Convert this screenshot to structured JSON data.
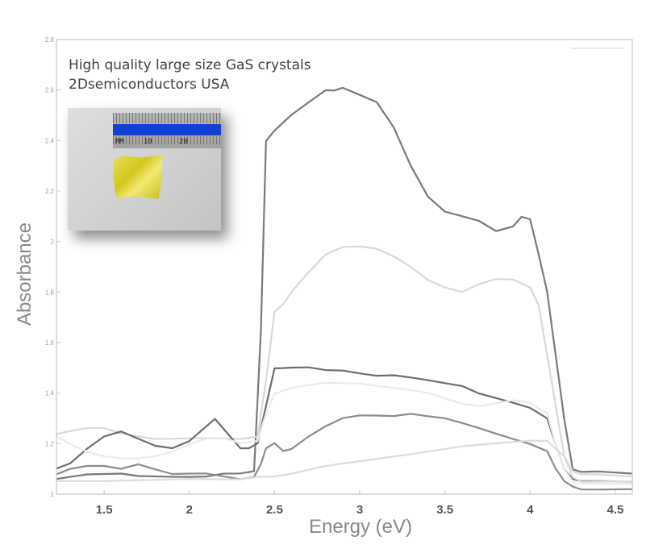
{
  "chart_data": {
    "type": "line",
    "title": "",
    "xlabel": "Energy (eV)",
    "ylabel": "Absorbance",
    "xlim": [
      1.22,
      4.6
    ],
    "ylim": [
      1.0,
      2.8
    ],
    "x_ticks": [
      "1.5",
      "2",
      "2.5",
      "3",
      "3.5",
      "4",
      "4.5"
    ],
    "y_ticks": [
      "1",
      "1.2",
      "1.4",
      "1.6",
      "1.8",
      "2",
      "2.2",
      "2.4",
      "2.6",
      "2.8"
    ],
    "grid": false,
    "series": [
      {
        "color": "#7a7a7a",
        "x": [
          1.22,
          1.3,
          1.4,
          1.5,
          1.6,
          1.7,
          1.8,
          1.9,
          2.0,
          2.1,
          2.2,
          2.3,
          2.38,
          2.42,
          2.45,
          2.5,
          2.55,
          2.6,
          2.7,
          2.8,
          2.85,
          2.9,
          3.0,
          3.1,
          3.2,
          3.3,
          3.4,
          3.5,
          3.6,
          3.7,
          3.8,
          3.9,
          3.95,
          4.0,
          4.05,
          4.1,
          4.15,
          4.2,
          4.25,
          4.3,
          4.4,
          4.6
        ],
        "y": [
          1.06,
          1.07,
          1.08,
          1.08,
          1.08,
          1.07,
          1.07,
          1.07,
          1.07,
          1.07,
          1.08,
          1.08,
          1.09,
          1.65,
          2.4,
          2.44,
          2.47,
          2.5,
          2.55,
          2.6,
          2.6,
          2.61,
          2.58,
          2.55,
          2.45,
          2.3,
          2.18,
          2.12,
          2.1,
          2.08,
          2.04,
          2.06,
          2.1,
          2.09,
          1.95,
          1.8,
          1.55,
          1.3,
          1.1,
          1.09,
          1.09,
          1.08
        ]
      },
      {
        "color": "#d9d9d9",
        "x": [
          1.22,
          1.3,
          1.4,
          1.5,
          1.6,
          1.7,
          1.8,
          1.9,
          2.0,
          2.1,
          2.2,
          2.3,
          2.4,
          2.45,
          2.5,
          2.55,
          2.6,
          2.7,
          2.8,
          2.9,
          3.0,
          3.1,
          3.2,
          3.3,
          3.4,
          3.5,
          3.6,
          3.7,
          3.8,
          3.9,
          4.0,
          4.05,
          4.1,
          4.15,
          4.2,
          4.25,
          4.3,
          4.4,
          4.6
        ],
        "y": [
          1.24,
          1.25,
          1.26,
          1.26,
          1.24,
          1.23,
          1.22,
          1.22,
          1.22,
          1.22,
          1.22,
          1.22,
          1.23,
          1.45,
          1.72,
          1.75,
          1.8,
          1.88,
          1.95,
          1.98,
          1.98,
          1.97,
          1.94,
          1.9,
          1.85,
          1.82,
          1.8,
          1.83,
          1.85,
          1.85,
          1.82,
          1.75,
          1.55,
          1.35,
          1.15,
          1.09,
          1.08,
          1.08,
          1.07
        ]
      },
      {
        "color": "#6e6e6e",
        "x": [
          1.22,
          1.3,
          1.4,
          1.5,
          1.6,
          1.7,
          1.8,
          1.9,
          2.0,
          2.1,
          2.15,
          2.2,
          2.3,
          2.35,
          2.4,
          2.45,
          2.5,
          2.55,
          2.6,
          2.7,
          2.8,
          2.9,
          3.0,
          3.1,
          3.2,
          3.3,
          3.4,
          3.5,
          3.6,
          3.7,
          3.8,
          3.9,
          4.0,
          4.1,
          4.15,
          4.2,
          4.25,
          4.3,
          4.4,
          4.6
        ],
        "y": [
          1.1,
          1.12,
          1.18,
          1.23,
          1.25,
          1.22,
          1.19,
          1.18,
          1.21,
          1.27,
          1.3,
          1.26,
          1.18,
          1.18,
          1.2,
          1.35,
          1.5,
          1.5,
          1.5,
          1.5,
          1.49,
          1.49,
          1.48,
          1.47,
          1.47,
          1.46,
          1.45,
          1.44,
          1.43,
          1.4,
          1.38,
          1.36,
          1.34,
          1.3,
          1.2,
          1.1,
          1.06,
          1.05,
          1.05,
          1.05
        ]
      },
      {
        "color": "#ebebeb",
        "x": [
          1.22,
          1.3,
          1.4,
          1.5,
          1.6,
          1.7,
          1.8,
          1.9,
          2.0,
          2.1,
          2.2,
          2.3,
          2.4,
          2.45,
          2.5,
          2.55,
          2.6,
          2.7,
          2.8,
          2.9,
          3.0,
          3.1,
          3.2,
          3.3,
          3.4,
          3.5,
          3.6,
          3.7,
          3.8,
          3.9,
          4.0,
          4.1,
          4.15,
          4.2,
          4.25,
          4.3,
          4.4,
          4.6
        ],
        "y": [
          1.23,
          1.2,
          1.17,
          1.15,
          1.14,
          1.14,
          1.15,
          1.17,
          1.2,
          1.22,
          1.22,
          1.2,
          1.21,
          1.32,
          1.4,
          1.41,
          1.42,
          1.43,
          1.44,
          1.44,
          1.44,
          1.43,
          1.42,
          1.41,
          1.4,
          1.38,
          1.36,
          1.35,
          1.36,
          1.37,
          1.36,
          1.32,
          1.2,
          1.1,
          1.05,
          1.04,
          1.04,
          1.04
        ]
      },
      {
        "color": "#8c8c8c",
        "x": [
          1.22,
          1.3,
          1.4,
          1.5,
          1.6,
          1.7,
          1.8,
          1.9,
          2.0,
          2.1,
          2.2,
          2.3,
          2.38,
          2.42,
          2.45,
          2.5,
          2.55,
          2.6,
          2.7,
          2.8,
          2.9,
          3.0,
          3.1,
          3.2,
          3.3,
          3.4,
          3.5,
          3.6,
          3.7,
          3.8,
          3.9,
          4.0,
          4.1,
          4.15,
          4.2,
          4.25,
          4.3,
          4.4,
          4.6
        ],
        "y": [
          1.08,
          1.1,
          1.11,
          1.11,
          1.1,
          1.12,
          1.1,
          1.08,
          1.08,
          1.08,
          1.07,
          1.06,
          1.07,
          1.12,
          1.18,
          1.2,
          1.17,
          1.18,
          1.23,
          1.27,
          1.3,
          1.31,
          1.31,
          1.31,
          1.32,
          1.31,
          1.3,
          1.28,
          1.26,
          1.24,
          1.22,
          1.2,
          1.17,
          1.1,
          1.05,
          1.03,
          1.02,
          1.02,
          1.02
        ]
      },
      {
        "color": "#dcdcdc",
        "x": [
          1.22,
          1.5,
          2.0,
          2.3,
          2.4,
          2.5,
          2.6,
          2.8,
          3.0,
          3.2,
          3.4,
          3.6,
          3.8,
          4.0,
          4.1,
          4.2,
          4.25,
          4.3,
          4.6
        ],
        "y": [
          1.05,
          1.05,
          1.06,
          1.06,
          1.07,
          1.07,
          1.08,
          1.11,
          1.13,
          1.15,
          1.17,
          1.19,
          1.2,
          1.21,
          1.21,
          1.15,
          1.07,
          1.05,
          1.05
        ]
      }
    ]
  },
  "annotation": {
    "line1": "High quality large size GaS crystals",
    "line2": "2Dsemiconductors USA"
  },
  "inset": {
    "ruler_marks": [
      "MM",
      "10",
      "20"
    ]
  }
}
